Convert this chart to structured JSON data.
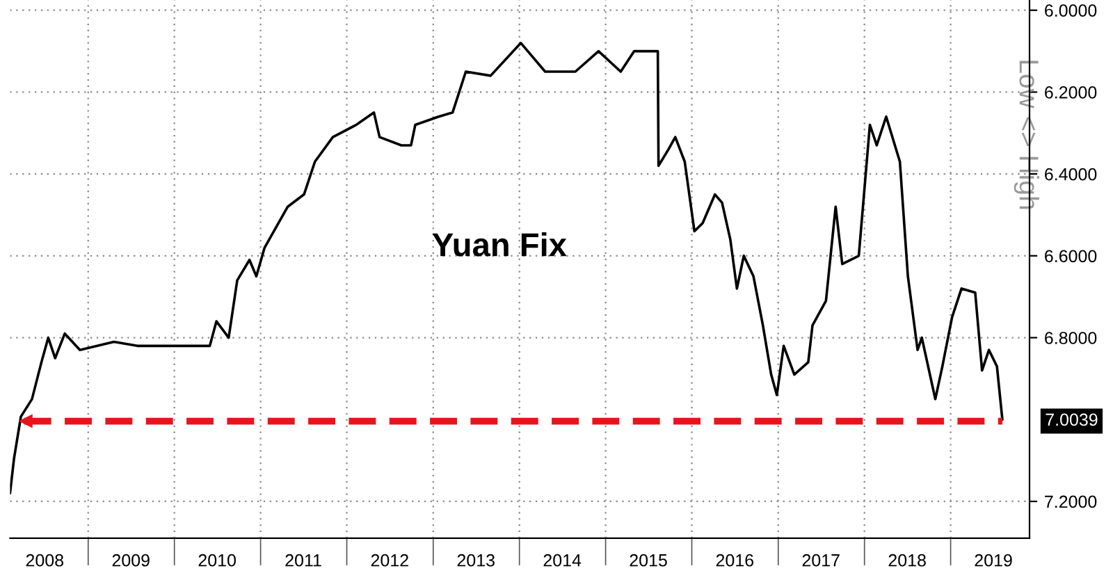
{
  "chart_data": {
    "type": "line",
    "annotations": [
      "Yuan Fix"
    ],
    "ylabel": "Low <> High",
    "x": [
      "2008-02-05",
      "2008-02-22",
      "2008-03-22",
      "2008-05-08",
      "2008-06-17",
      "2008-07-16",
      "2008-08-14",
      "2008-09-24",
      "2008-11-27",
      "2009-04-20",
      "2009-07-28",
      "2010-05-31",
      "2010-06-28",
      "2010-08-19",
      "2010-09-24",
      "2010-11-15",
      "2010-12-14",
      "2011-01-18",
      "2011-04-26",
      "2011-07-04",
      "2011-08-19",
      "2011-11-03",
      "2012-02-10",
      "2012-04-25",
      "2012-05-19",
      "2012-08-19",
      "2012-09-29",
      "2012-10-17",
      "2013-01-24",
      "2013-03-24",
      "2013-05-19",
      "2013-09-01",
      "2014-01-07",
      "2014-04-20",
      "2014-05-02",
      "2014-08-26",
      "2014-12-02",
      "2015-03-06",
      "2015-05-02",
      "2015-08-10",
      "2015-08-13",
      "2015-09-24",
      "2015-10-23",
      "2015-12-02",
      "2016-01-12",
      "2016-02-16",
      "2016-04-08",
      "2016-05-08",
      "2016-06-12",
      "2016-07-10",
      "2016-08-08",
      "2016-09-18",
      "2016-10-28",
      "2016-12-02",
      "2016-12-26",
      "2017-01-24",
      "2017-03-10",
      "2017-05-08",
      "2017-05-26",
      "2017-07-22",
      "2017-09-01",
      "2017-09-29",
      "2017-12-08",
      "2018-01-24",
      "2018-02-22",
      "2018-04-03",
      "2018-05-31",
      "2018-07-04",
      "2018-08-14",
      "2018-09-01",
      "2018-10-28",
      "2018-11-27",
      "2019-01-07",
      "2019-02-16",
      "2019-04-15",
      "2019-05-14",
      "2019-06-12",
      "2019-07-16",
      "2019-08-08"
    ],
    "series": [
      {
        "color": "#000000",
        "values": [
          7.18,
          7.095,
          6.993,
          6.95,
          6.86,
          6.8,
          6.85,
          6.79,
          6.83,
          6.81,
          6.82,
          6.82,
          6.76,
          6.8,
          6.66,
          6.61,
          6.65,
          6.58,
          6.48,
          6.45,
          6.37,
          6.31,
          6.28,
          6.25,
          6.31,
          6.33,
          6.33,
          6.28,
          6.26,
          6.25,
          6.15,
          6.16,
          6.08,
          6.15,
          6.15,
          6.15,
          6.1,
          6.15,
          6.1,
          6.1,
          6.38,
          6.34,
          6.31,
          6.37,
          6.54,
          6.52,
          6.45,
          6.47,
          6.56,
          6.68,
          6.6,
          6.65,
          6.77,
          6.89,
          6.94,
          6.82,
          6.89,
          6.86,
          6.77,
          6.71,
          6.48,
          6.62,
          6.6,
          6.28,
          6.33,
          6.26,
          6.37,
          6.65,
          6.83,
          6.8,
          6.95,
          6.87,
          6.75,
          6.68,
          6.69,
          6.88,
          6.83,
          6.87,
          7.0
        ]
      }
    ],
    "xlim": [
      "2008-02-05",
      "2019-12-01"
    ],
    "xticks": [
      {
        "value": "2008-07-01",
        "label": "2008"
      },
      {
        "value": "2009-01-01",
        "label": null
      },
      {
        "value": "2009-07-01",
        "label": "2009"
      },
      {
        "value": "2010-01-01",
        "label": null
      },
      {
        "value": "2010-07-01",
        "label": "2010"
      },
      {
        "value": "2011-01-01",
        "label": null
      },
      {
        "value": "2011-07-01",
        "label": "2011"
      },
      {
        "value": "2012-01-01",
        "label": null
      },
      {
        "value": "2012-07-01",
        "label": "2012"
      },
      {
        "value": "2013-01-01",
        "label": null
      },
      {
        "value": "2013-07-01",
        "label": "2013"
      },
      {
        "value": "2014-01-01",
        "label": null
      },
      {
        "value": "2014-07-01",
        "label": "2014"
      },
      {
        "value": "2015-01-01",
        "label": null
      },
      {
        "value": "2015-07-01",
        "label": "2015"
      },
      {
        "value": "2016-01-01",
        "label": null
      },
      {
        "value": "2016-07-01",
        "label": "2016"
      },
      {
        "value": "2017-01-01",
        "label": null
      },
      {
        "value": "2017-07-01",
        "label": "2017"
      },
      {
        "value": "2018-01-01",
        "label": null
      },
      {
        "value": "2018-07-01",
        "label": "2018"
      },
      {
        "value": "2019-01-01",
        "label": null
      },
      {
        "value": "2019-07-01",
        "label": "2019"
      }
    ],
    "ylim": [
      7.29,
      5.975
    ],
    "yticks": [
      {
        "value": 6,
        "label": "6.0000"
      },
      {
        "value": 6.2,
        "label": "6.2000"
      },
      {
        "value": 6.4,
        "label": "6.4000"
      },
      {
        "value": 6.6,
        "label": "6.6000"
      },
      {
        "value": 6.8,
        "label": "6.8000"
      },
      {
        "value": 7.2,
        "label": "7.2000"
      }
    ],
    "ref_lines": [
      {
        "axis": "y",
        "value": 7.0039,
        "label": "7.0039",
        "color": "#e8141c",
        "line_style": "dashed"
      }
    ],
    "grid": true,
    "line_style": "solid"
  }
}
